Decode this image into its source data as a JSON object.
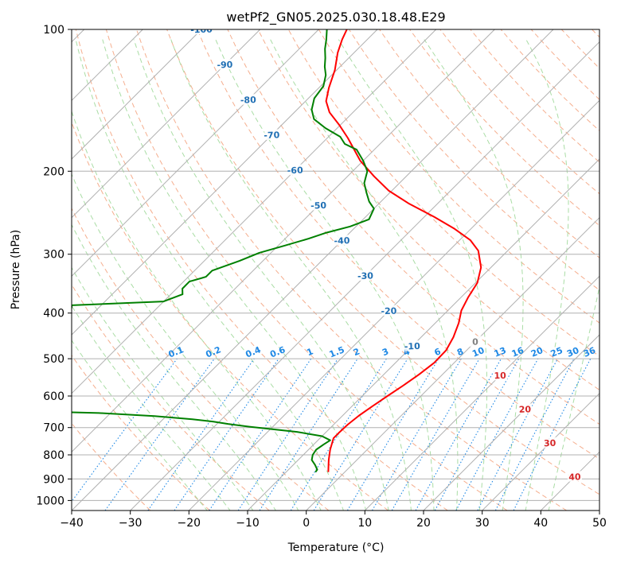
{
  "chart_data": {
    "type": "line",
    "subtype": "skew-t log-p diagram",
    "title": "wetPf2_GN05.2025.030.18.48.E29",
    "xlabel": "Temperature (°C)",
    "ylabel": "Pressure (hPa)",
    "xlim": [
      -40,
      50
    ],
    "ylim": [
      1050,
      100
    ],
    "y_scale": "log",
    "grid": true,
    "x_ticks": [
      "−40",
      "−30",
      "−20",
      "−10",
      "0",
      "10",
      "20",
      "30",
      "40",
      "50"
    ],
    "y_ticks": [
      "100",
      "200",
      "300",
      "400",
      "500",
      "600",
      "700",
      "800",
      "900",
      "1000"
    ],
    "colors": {
      "temperature": "#ff0000",
      "dewpoint": "#008000",
      "isotherm": "#b0b0b0",
      "dry_adiabat": "#f4a582",
      "moist_adiabat": "#a1d99b",
      "mixing_ratio": "#1e88e5",
      "isotherm_label": "#1f6fb4",
      "warm_label": "#d62728",
      "zero_label": "#808080"
    },
    "series": [
      {
        "key": "temperature",
        "points": [
          [
            -2.8,
            870
          ],
          [
            -3.4,
            855
          ],
          [
            -4.8,
            820
          ],
          [
            -6.3,
            780
          ],
          [
            -7.7,
            737
          ],
          [
            -7.7,
            720
          ],
          [
            -7.6,
            690
          ],
          [
            -7.2,
            660
          ],
          [
            -6.5,
            630
          ],
          [
            -5.7,
            600
          ],
          [
            -4.8,
            570
          ],
          [
            -4.0,
            540
          ],
          [
            -3.4,
            510
          ],
          [
            -3.5,
            480
          ],
          [
            -4.5,
            450
          ],
          [
            -6.0,
            420
          ],
          [
            -7.7,
            395
          ],
          [
            -8.8,
            370
          ],
          [
            -9.7,
            345
          ],
          [
            -11.7,
            320
          ],
          [
            -15.0,
            295
          ],
          [
            -18.2,
            280
          ],
          [
            -22.8,
            265
          ],
          [
            -28.3,
            250
          ],
          [
            -35.0,
            234
          ],
          [
            -40.5,
            220
          ],
          [
            -45.5,
            205
          ],
          [
            -50.5,
            190
          ],
          [
            -56.5,
            170
          ],
          [
            -60.0,
            160
          ],
          [
            -64.0,
            150
          ],
          [
            -66.5,
            142
          ],
          [
            -68.3,
            133
          ],
          [
            -70.3,
            122
          ],
          [
            -72.8,
            112
          ],
          [
            -74.3,
            105
          ],
          [
            -75.2,
            100
          ]
        ]
      },
      {
        "key": "dewpoint",
        "points": [
          [
            -5.0,
            870
          ],
          [
            -5.1,
            860
          ],
          [
            -6.3,
            840
          ],
          [
            -7.7,
            820
          ],
          [
            -8.4,
            800
          ],
          [
            -8.7,
            780
          ],
          [
            -8.3,
            760
          ],
          [
            -7.9,
            745
          ],
          [
            -10.0,
            730
          ],
          [
            -15.0,
            715
          ],
          [
            -20.0,
            705
          ],
          [
            -24.0,
            697
          ],
          [
            -28.0,
            688
          ],
          [
            -31.0,
            680
          ],
          [
            -35.0,
            672
          ],
          [
            -42.0,
            662
          ],
          [
            -52.0,
            652
          ],
          [
            -60.0,
            648
          ],
          [
            -75.0,
            385
          ],
          [
            -60.0,
            378
          ],
          [
            -58.0,
            365
          ],
          [
            -59.0,
            355
          ],
          [
            -59.0,
            343
          ],
          [
            -57.0,
            335
          ],
          [
            -57.0,
            325
          ],
          [
            -54.0,
            310
          ],
          [
            -52.0,
            298
          ],
          [
            -49.0,
            288
          ],
          [
            -46.0,
            278
          ],
          [
            -44.0,
            270
          ],
          [
            -41.0,
            262
          ],
          [
            -39.0,
            253
          ],
          [
            -40.0,
            240
          ],
          [
            -42.0,
            232
          ],
          [
            -44.0,
            222
          ],
          [
            -46.0,
            212
          ],
          [
            -47.5,
            200
          ],
          [
            -50.0,
            190
          ],
          [
            -53.0,
            180
          ],
          [
            -56.0,
            175
          ],
          [
            -58.0,
            169
          ],
          [
            -62.0,
            162
          ],
          [
            -65.5,
            155
          ],
          [
            -67.5,
            148
          ],
          [
            -69.0,
            140
          ],
          [
            -69.5,
            132
          ],
          [
            -71.0,
            125
          ],
          [
            -72.6,
            120
          ],
          [
            -74.0,
            115
          ],
          [
            -75.6,
            110
          ],
          [
            -77.0,
            105
          ],
          [
            -78.6,
            100
          ]
        ]
      }
    ],
    "isotherm_labels": [
      "-100",
      "-90",
      "-80",
      "-70",
      "-60",
      "-50",
      "-40",
      "-30",
      "-20",
      "-10",
      "0",
      "10",
      "20",
      "30",
      "40"
    ],
    "mixing_ratio_labels": [
      "0.1",
      "0.2",
      "0.4",
      "0.6",
      "1",
      "1.5",
      "2",
      "3",
      "4",
      "6",
      "8",
      "10",
      "13",
      "16",
      "20",
      "25",
      "30",
      "36"
    ],
    "mixing_ratio_label_pressure": 500
  }
}
